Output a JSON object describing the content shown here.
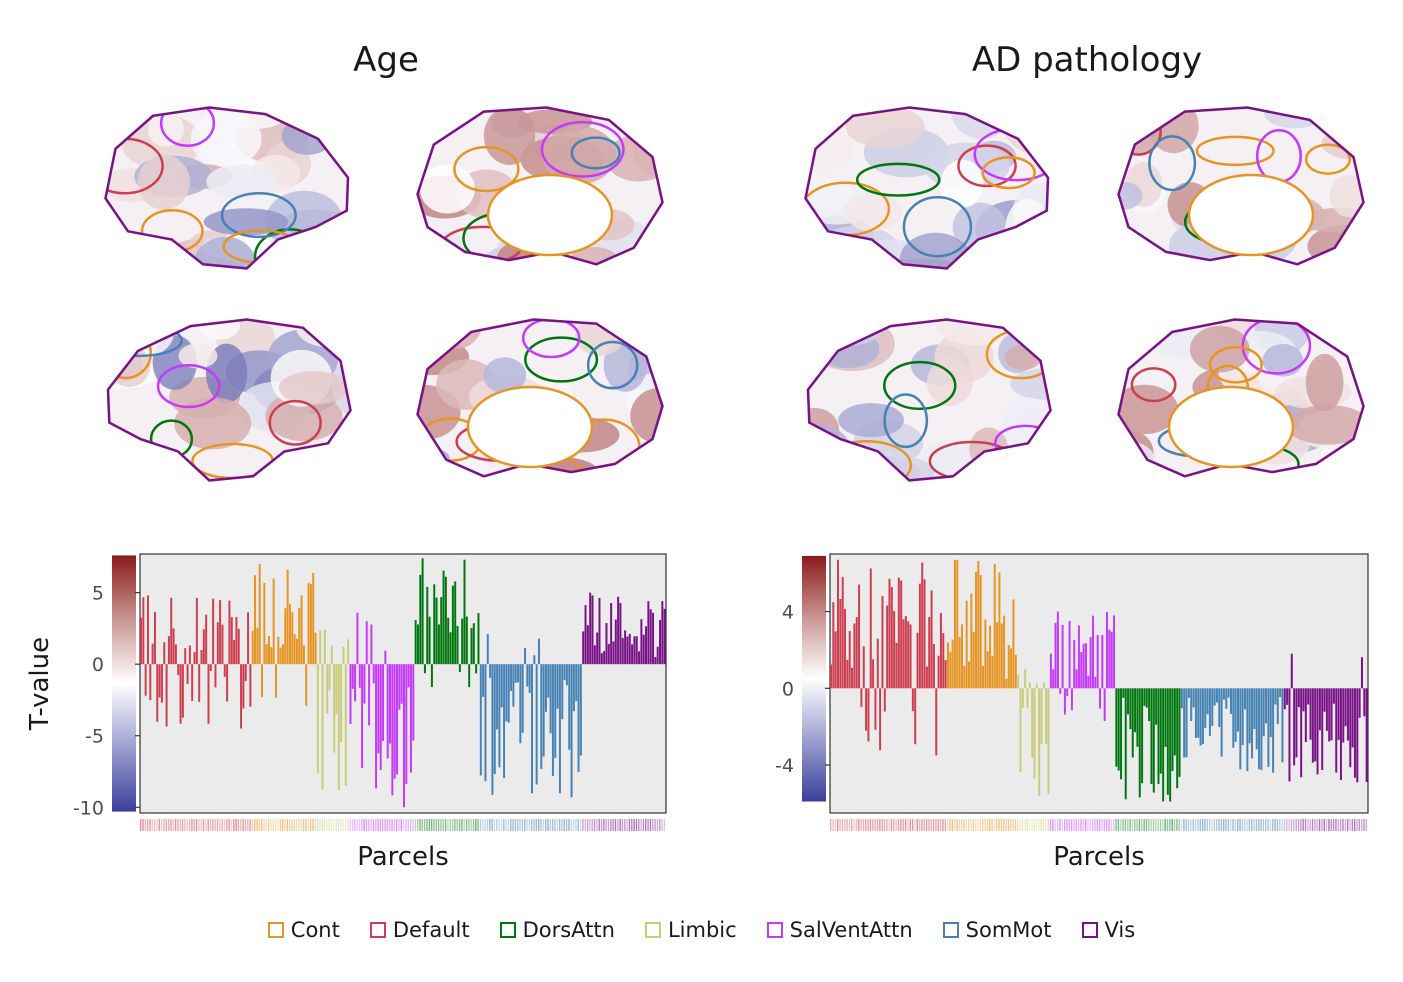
{
  "panels": [
    {
      "title": "Age"
    },
    {
      "title": "AD pathology"
    }
  ],
  "networks": [
    {
      "name": "Cont",
      "color": "#E69422"
    },
    {
      "name": "Default",
      "color": "#CD3E4E"
    },
    {
      "name": "DorsAttn",
      "color": "#00760E"
    },
    {
      "name": "Limbic",
      "color": "#C8CC7A"
    },
    {
      "name": "SalVentAttn",
      "color": "#C43AFA"
    },
    {
      "name": "SomMot",
      "color": "#4682B4"
    },
    {
      "name": "Vis",
      "color": "#781286"
    }
  ],
  "colorscale": {
    "low": "#3B3F9A",
    "mid": "#FFFFFF",
    "high": "#8B1A1A"
  },
  "chart_data": [
    {
      "type": "bar",
      "panel": "Age",
      "xlabel": "Parcels",
      "ylabel": "T-value",
      "yticks": [
        5,
        0,
        -5,
        -10
      ],
      "ylim": [
        -10.4,
        7.7
      ],
      "colorbar_range": [
        -10.3,
        7.6
      ],
      "groups": [
        {
          "network": "Default",
          "n": 48,
          "min": -4.5,
          "max": 4.8,
          "pos_frac": 0.55
        },
        {
          "network": "Cont",
          "n": 28,
          "min": -2.9,
          "max": 7.0,
          "pos_frac": 0.88
        },
        {
          "network": "Limbic",
          "n": 14,
          "min": -8.8,
          "max": 2.4,
          "pos_frac": 0.25
        },
        {
          "network": "SalVentAttn",
          "n": 28,
          "min": -10.0,
          "max": 3.6,
          "pos_frac": 0.3
        },
        {
          "network": "DorsAttn",
          "n": 28,
          "min": -1.6,
          "max": 7.4,
          "pos_frac": 0.9
        },
        {
          "network": "SomMot",
          "n": 44,
          "min": -9.3,
          "max": 2.1,
          "pos_frac": 0.08
        },
        {
          "network": "Vis",
          "n": 36,
          "min": 0.5,
          "max": 5.0,
          "pos_frac": 1.0
        }
      ]
    },
    {
      "type": "bar",
      "panel": "AD pathology",
      "xlabel": "Parcels",
      "ylabel": "",
      "yticks": [
        4,
        0,
        -4
      ],
      "ylim": [
        -6.5,
        7.0
      ],
      "colorbar_range": [
        -5.9,
        6.9
      ],
      "groups": [
        {
          "network": "Default",
          "n": 50,
          "min": -3.5,
          "max": 6.7,
          "pos_frac": 0.82
        },
        {
          "network": "Cont",
          "n": 30,
          "min": 0.5,
          "max": 6.7,
          "pos_frac": 1.0
        },
        {
          "network": "Limbic",
          "n": 14,
          "min": -5.6,
          "max": 1.0,
          "pos_frac": 0.2
        },
        {
          "network": "SalVentAttn",
          "n": 28,
          "min": -1.7,
          "max": 4.0,
          "pos_frac": 0.78
        },
        {
          "network": "DorsAttn",
          "n": 28,
          "min": -5.9,
          "max": -0.5,
          "pos_frac": 0.0
        },
        {
          "network": "SomMot",
          "n": 44,
          "min": -4.4,
          "max": -0.5,
          "pos_frac": 0.0
        },
        {
          "network": "Vis",
          "n": 36,
          "min": -4.9,
          "max": 1.8,
          "pos_frac": 0.04
        }
      ]
    }
  ]
}
